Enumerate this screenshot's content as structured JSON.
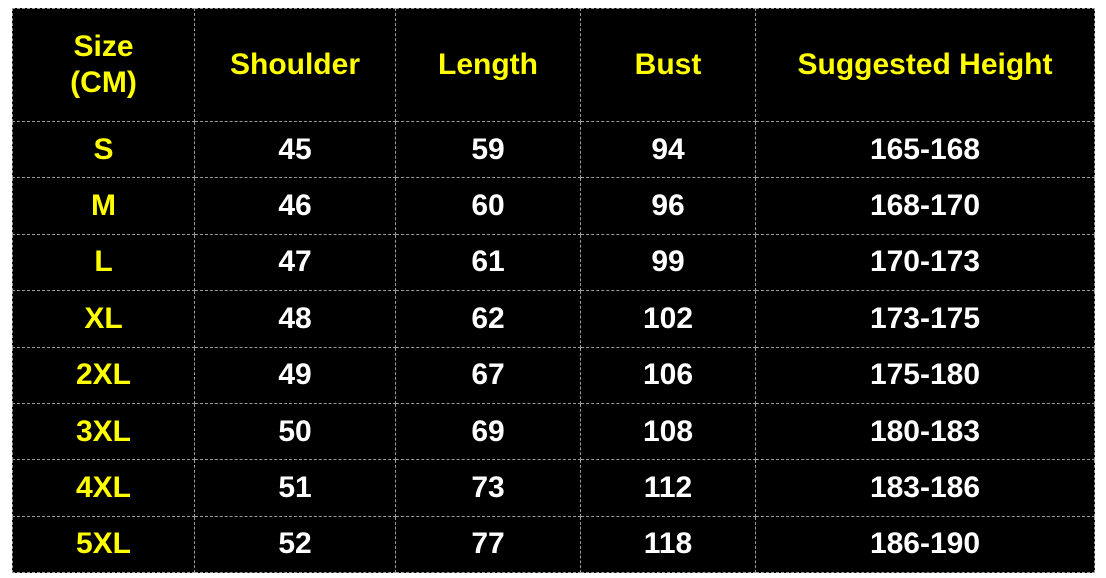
{
  "table": {
    "header": [
      "Size\n(CM)",
      "Shoulder",
      "Length",
      "Bust",
      "Suggested Height"
    ],
    "rows": [
      [
        "S",
        45,
        59,
        94,
        "165-168"
      ],
      [
        "M",
        46,
        60,
        96,
        "168-170"
      ],
      [
        "L",
        47,
        61,
        99,
        "170-173"
      ],
      [
        "XL",
        48,
        62,
        102,
        "173-175"
      ],
      [
        "2XL",
        49,
        67,
        106,
        "175-180"
      ],
      [
        "3XL",
        50,
        69,
        108,
        "180-183"
      ],
      [
        "4XL",
        51,
        73,
        112,
        "183-186"
      ],
      [
        "5XL",
        52,
        77,
        118,
        "186-190"
      ]
    ]
  }
}
